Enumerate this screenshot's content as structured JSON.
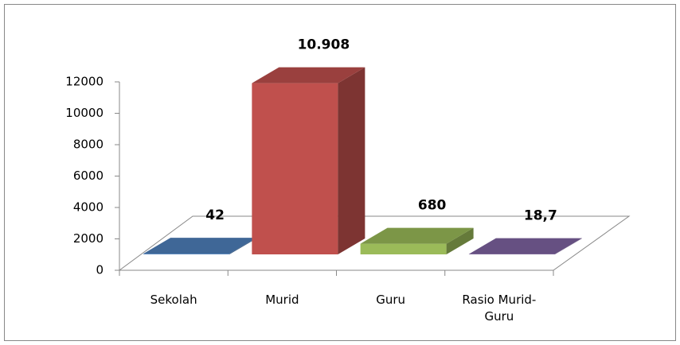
{
  "chart_data": {
    "type": "bar3d",
    "categories": [
      "Sekolah",
      "Murid",
      "Guru",
      "Rasio Murid-Guru"
    ],
    "values": [
      42,
      10908,
      680,
      18.7
    ],
    "value_labels": [
      "42",
      "10.908",
      "680",
      "18,7"
    ],
    "colors": [
      "#4f81bd",
      "#c0504d",
      "#9bbb59",
      "#8064a2"
    ],
    "ylim": [
      0,
      12000
    ],
    "yticks": [
      0,
      2000,
      4000,
      6000,
      8000,
      10000,
      12000
    ]
  }
}
